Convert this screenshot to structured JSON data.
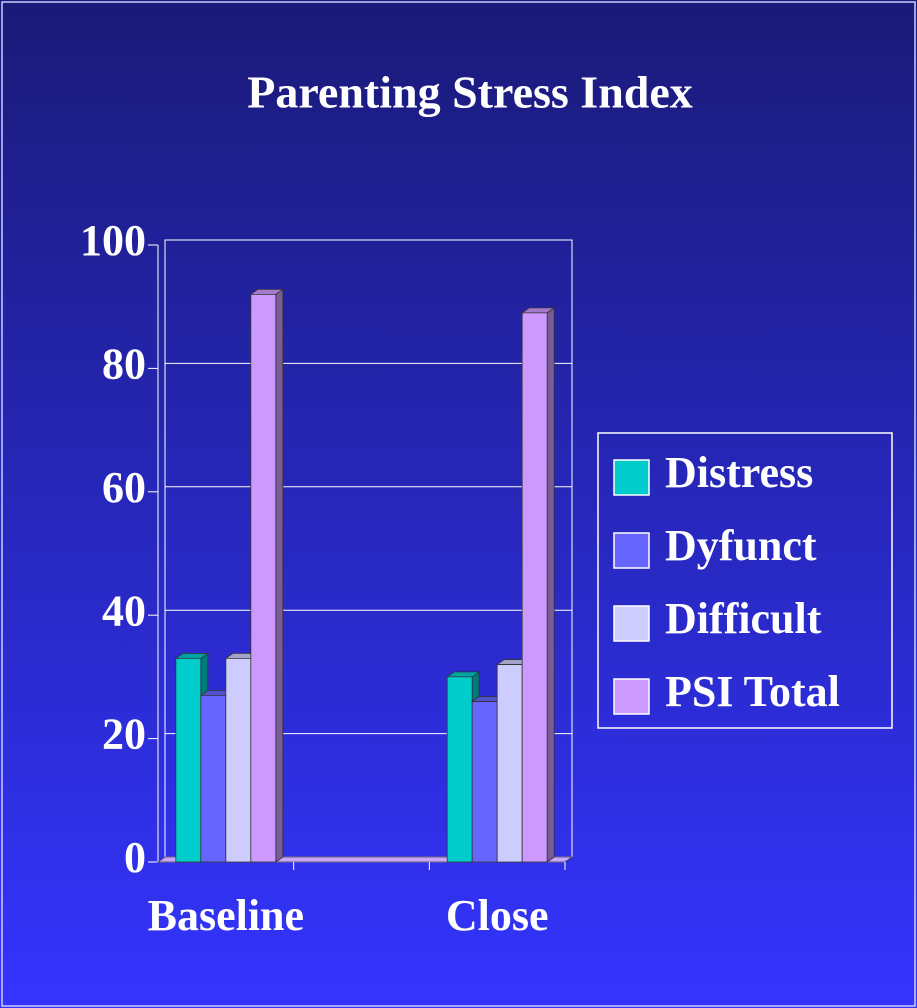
{
  "chart_data": {
    "type": "bar3d",
    "title": "Parenting Stress Index",
    "categories": [
      "Baseline",
      null,
      "Close"
    ],
    "series": [
      {
        "name": "Distress",
        "color": "#00cccc",
        "values": [
          33,
          null,
          30
        ]
      },
      {
        "name": "Dyfunct",
        "color": "#6666ff",
        "values": [
          27,
          null,
          26
        ]
      },
      {
        "name": "Difficult",
        "color": "#ccccff",
        "values": [
          33,
          null,
          32
        ]
      },
      {
        "name": "PSI Total",
        "color": "#cc99ff",
        "values": [
          92,
          null,
          89
        ]
      }
    ],
    "ylim": [
      0,
      100
    ],
    "yticks": [
      0,
      20,
      40,
      60,
      80,
      100
    ],
    "grid": true,
    "legend": "right"
  }
}
